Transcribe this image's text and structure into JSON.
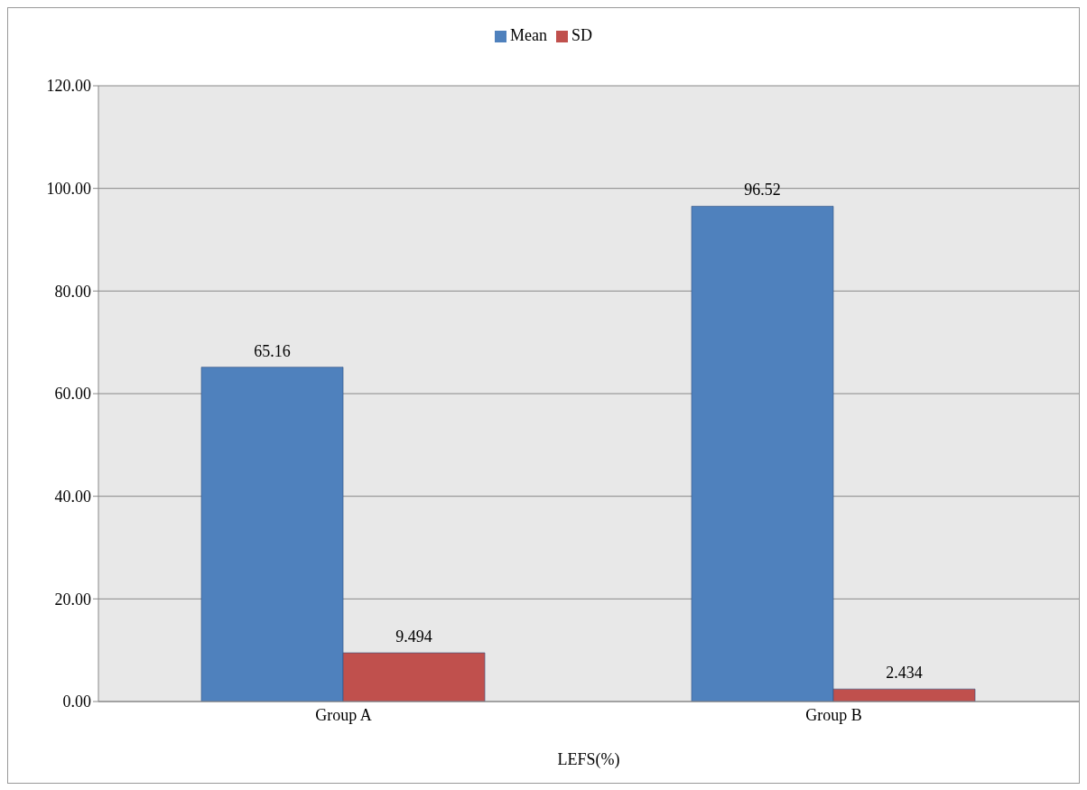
{
  "chart_data": {
    "type": "bar",
    "categories": [
      "Group A",
      "Group B"
    ],
    "xlabel": "LEFS(%)",
    "series": [
      {
        "name": "Mean",
        "color": "#4f81bd",
        "values": [
          65.16,
          96.52
        ]
      },
      {
        "name": "SD",
        "color": "#c0504d",
        "values": [
          9.494,
          2.434
        ]
      }
    ],
    "ylim": [
      0,
      120
    ],
    "yticks": [
      {
        "value": 0,
        "label": "0.00"
      },
      {
        "value": 20,
        "label": "20.00"
      },
      {
        "value": 40,
        "label": "40.00"
      },
      {
        "value": 60,
        "label": "60.00"
      },
      {
        "value": 80,
        "label": "80.00"
      },
      {
        "value": 100,
        "label": "100.00"
      },
      {
        "value": 120,
        "label": "120.00"
      }
    ],
    "grid": "y",
    "legend": "top",
    "data_labels": true
  }
}
